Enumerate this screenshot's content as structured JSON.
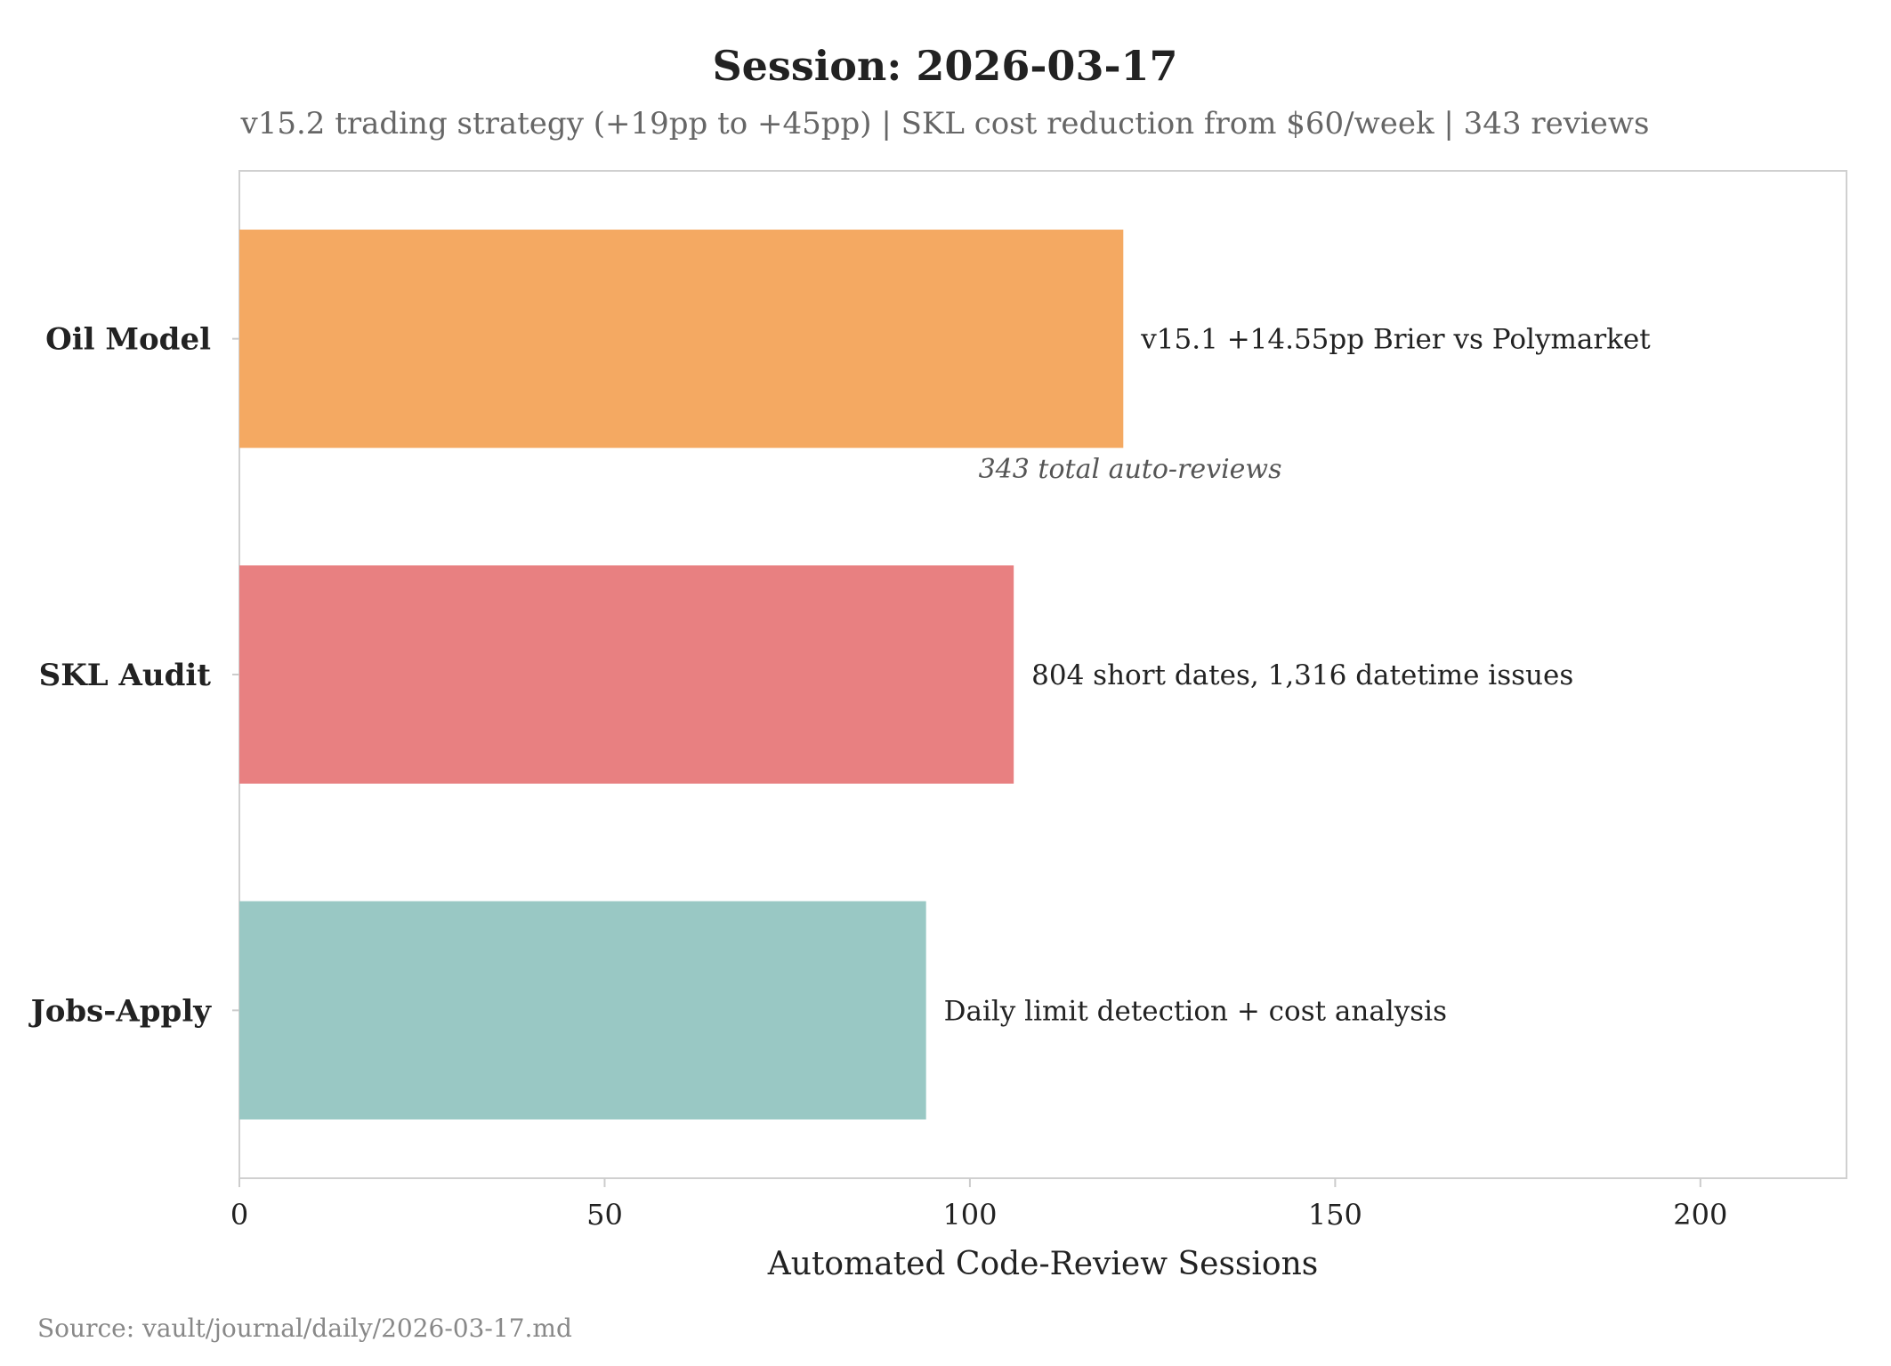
{
  "chart_data": {
    "type": "bar",
    "orientation": "horizontal",
    "title": "Session: 2026-03-17",
    "subtitle": "v15.2 trading strategy (+19pp to +45pp) | SKL cost reduction from $60/week | 343 reviews",
    "xlabel": "Automated Code-Review Sessions",
    "ylabel": "",
    "categories": [
      "Oil Model",
      "SKL Audit",
      "Jobs-Apply"
    ],
    "values": [
      121,
      106,
      94
    ],
    "colors": [
      "#F4A962",
      "#E88081",
      "#99C8C4"
    ],
    "bar_labels": [
      "v15.1 +14.55pp Brier vs Polymarket",
      "804 short dates, 1,316 datetime issues",
      "Daily limit detection + cost analysis"
    ],
    "annotation": {
      "text": "343 total auto-reviews",
      "x": 105.5
    },
    "xlim": [
      0,
      220
    ],
    "xticks": [
      0,
      50,
      100,
      150,
      200
    ],
    "grid": false,
    "legend": "none",
    "source": "Source: vault/journal/daily/2026-03-17.md"
  }
}
